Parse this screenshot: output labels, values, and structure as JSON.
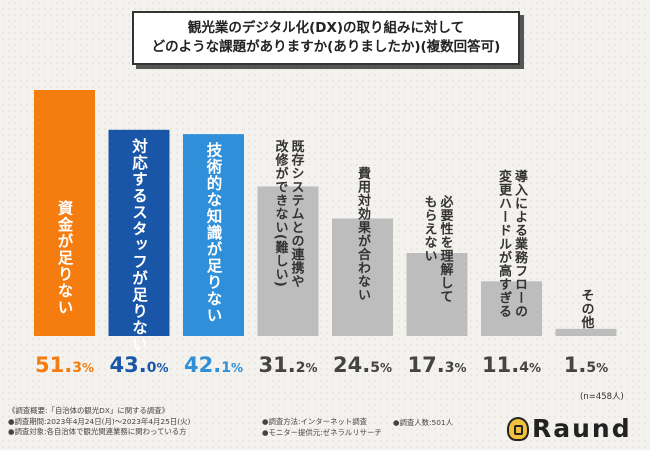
{
  "chart_data": {
    "type": "bar",
    "title_line1": "観光業のデジタル化(DX)の取り組みに対して",
    "title_line2": "どのような課題がありますか(ありましたか)(複数回答可)",
    "categories": [
      "資金が足りない",
      "対応するスタッフが足りない",
      "技術的な知識が足りない",
      "既存システムとの連携や改修ができない(難しい)",
      "費用対効果が合わない",
      "必要性を理解してもらえない",
      "導入による業務フローの変更ハードルが高すぎる",
      "その他"
    ],
    "label_lines": [
      [
        "資金が足りない"
      ],
      [
        "対応するスタッフが足りない"
      ],
      [
        "技術的な知識が足りない"
      ],
      [
        "既存システムとの連携や",
        "改修ができない(難しい)"
      ],
      [
        "費用対効果が合わない"
      ],
      [
        "必要性を理解して",
        "もらえない"
      ],
      [
        "導入による業務フローの",
        "変更ハードルが高すぎる"
      ],
      [
        "その他"
      ]
    ],
    "values": [
      51.3,
      43.0,
      42.1,
      31.2,
      24.5,
      17.3,
      11.4,
      1.5
    ],
    "value_labels": [
      "51.3%",
      "43.0%",
      "42.1%",
      "31.2%",
      "24.5%",
      "17.3%",
      "11.4%",
      "1.5%"
    ],
    "colors": [
      "#f57c0e",
      "#1a56a8",
      "#2f8fd8",
      "#bdbdbd",
      "#bdbdbd",
      "#bdbdbd",
      "#bdbdbd",
      "#bdbdbd"
    ],
    "value_colors": [
      "#f57c0e",
      "#1a56a8",
      "#2f8fd8",
      "#444444",
      "#444444",
      "#444444",
      "#444444",
      "#444444"
    ],
    "ylim": [
      0,
      51.3
    ],
    "legend": "none"
  },
  "note": "(n=458人)",
  "footer": {
    "line1": "《調査概要:「自治体の観光DX」に関する調査》",
    "line2": "●調査期間:2023年4月24日(月)〜2023年4月25日(火)",
    "line3": "●調査対象:各自治体で観光関連業務に関わっている方",
    "method": "●調査方法:インターネット調査",
    "provider": "●モニター提供元:ゼネラルリサーチ",
    "count": "●調査人数:501人"
  },
  "logo_text": "Raund"
}
